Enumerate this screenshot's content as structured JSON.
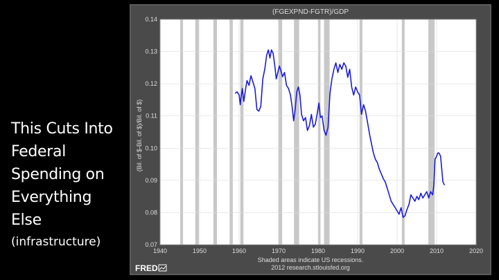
{
  "slide": {
    "title_lines": [
      "This Cuts Into",
      "Federal",
      "Spending on",
      "Everything",
      "Else"
    ],
    "subtitle": "(infrastructure)"
  },
  "chart_data": {
    "type": "line",
    "title": "(FGEXPND-FGTR)/GDP",
    "xlabel": "Shaded areas indicate US recessions.",
    "source": "2012 research.stlouisfed.org",
    "ylabel": "(Bil. of $-Bil. of $)/Bil. of $)",
    "logo_text": "FRED",
    "xlim": [
      1940,
      2020
    ],
    "ylim": [
      0.07,
      0.14
    ],
    "x_ticks": [
      1940,
      1950,
      1960,
      1970,
      1980,
      1990,
      2000,
      2010,
      2020
    ],
    "y_ticks": [
      0.07,
      0.08,
      0.09,
      0.1,
      0.11,
      0.12,
      0.13,
      0.14
    ],
    "y_tick_labels": [
      "0.07",
      "0.08",
      "0.09",
      "0.10",
      "0.11",
      "0.12",
      "0.13",
      "0.14"
    ],
    "grid": true,
    "recessions": [
      [
        1945.1,
        1945.8
      ],
      [
        1948.9,
        1949.8
      ],
      [
        1953.5,
        1954.4
      ],
      [
        1957.6,
        1958.4
      ],
      [
        1960.3,
        1961.1
      ],
      [
        1969.9,
        1970.9
      ],
      [
        1973.9,
        1975.2
      ],
      [
        1980.0,
        1980.6
      ],
      [
        1981.5,
        1982.9
      ],
      [
        1990.5,
        1991.2
      ],
      [
        2001.2,
        2001.9
      ],
      [
        2007.9,
        2009.5
      ]
    ],
    "series": [
      {
        "name": "(FGEXPND-FGTR)/GDP",
        "color": "#1a1adc",
        "x": [
          1959.0,
          1959.5,
          1960.0,
          1960.3,
          1960.5,
          1960.8,
          1961.2,
          1961.6,
          1962.0,
          1962.5,
          1963.0,
          1963.5,
          1964.0,
          1964.5,
          1965.0,
          1965.5,
          1966.0,
          1966.5,
          1967.0,
          1967.4,
          1967.8,
          1968.2,
          1968.6,
          1969.0,
          1969.4,
          1969.8,
          1970.2,
          1970.6,
          1971.0,
          1971.5,
          1972.0,
          1972.5,
          1973.0,
          1973.4,
          1973.8,
          1974.2,
          1974.6,
          1975.0,
          1975.4,
          1975.8,
          1976.3,
          1976.8,
          1977.3,
          1977.8,
          1978.3,
          1978.8,
          1979.3,
          1979.8,
          1980.2,
          1980.6,
          1981.0,
          1981.5,
          1982.0,
          1982.5,
          1983.0,
          1983.5,
          1984.0,
          1984.5,
          1985.0,
          1985.5,
          1986.0,
          1986.5,
          1987.0,
          1987.5,
          1988.0,
          1988.5,
          1989.0,
          1989.5,
          1990.0,
          1990.5,
          1991.0,
          1991.5,
          1992.0,
          1992.5,
          1993.0,
          1993.5,
          1994.0,
          1994.5,
          1995.0,
          1995.5,
          1996.0,
          1996.5,
          1997.0,
          1997.5,
          1998.0,
          1998.5,
          1999.0,
          1999.5,
          2000.0,
          2000.5,
          2001.0,
          2001.5,
          2002.0,
          2002.5,
          2003.0,
          2003.5,
          2004.0,
          2004.5,
          2005.0,
          2005.5,
          2006.0,
          2006.5,
          2007.0,
          2007.5,
          2008.0,
          2008.5,
          2009.0,
          2009.3,
          2009.6,
          2010.0,
          2010.3,
          2010.6,
          2011.0,
          2011.3,
          2011.6,
          2012.0
        ],
        "values": [
          0.117,
          0.1175,
          0.1165,
          0.1135,
          0.1158,
          0.1185,
          0.1145,
          0.118,
          0.121,
          0.1195,
          0.1225,
          0.1205,
          0.1185,
          0.112,
          0.1115,
          0.113,
          0.1215,
          0.1245,
          0.129,
          0.1305,
          0.128,
          0.1305,
          0.1295,
          0.126,
          0.1215,
          0.1235,
          0.1255,
          0.124,
          0.1222,
          0.1235,
          0.1195,
          0.1185,
          0.1165,
          0.113,
          0.1085,
          0.112,
          0.1175,
          0.119,
          0.1165,
          0.1105,
          0.1085,
          0.1095,
          0.1055,
          0.107,
          0.1105,
          0.1065,
          0.1075,
          0.111,
          0.114,
          0.1095,
          0.11,
          0.1055,
          0.104,
          0.1065,
          0.117,
          0.1215,
          0.1245,
          0.1265,
          0.1235,
          0.126,
          0.1245,
          0.1265,
          0.1255,
          0.122,
          0.1245,
          0.119,
          0.1165,
          0.119,
          0.1175,
          0.1165,
          0.1105,
          0.1135,
          0.1115,
          0.108,
          0.1045,
          0.1015,
          0.0985,
          0.0965,
          0.0955,
          0.0935,
          0.092,
          0.0905,
          0.0895,
          0.0875,
          0.0855,
          0.0835,
          0.0825,
          0.0815,
          0.0805,
          0.0795,
          0.0815,
          0.0785,
          0.079,
          0.081,
          0.0825,
          0.0855,
          0.0845,
          0.0835,
          0.085,
          0.084,
          0.086,
          0.0845,
          0.0855,
          0.0865,
          0.0845,
          0.0865,
          0.0855,
          0.0885,
          0.0965,
          0.0975,
          0.0985,
          0.0985,
          0.0975,
          0.0935,
          0.0895,
          0.0885
        ]
      }
    ]
  }
}
